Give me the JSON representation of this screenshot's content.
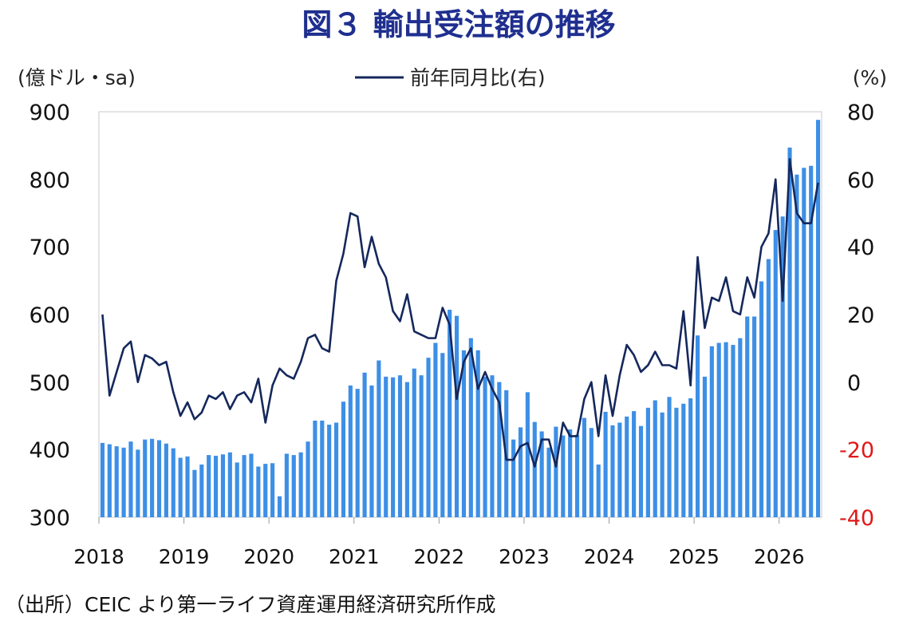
{
  "chart_data": {
    "type": "bar+line",
    "title": "図３ 輸出受注額の推移",
    "source": "（出所）CEIC より第一ライフ資産運用経済研究所作成",
    "left_axis": {
      "label": "(億ドル・sa)",
      "ylim": [
        300,
        900
      ],
      "ticks": [
        "900",
        "800",
        "700",
        "600",
        "500",
        "400",
        "300"
      ]
    },
    "right_axis": {
      "label": "(%)",
      "ylim": [
        -40,
        80
      ],
      "ticks": [
        "80",
        "60",
        "40",
        "20",
        "0",
        "-20",
        "-40"
      ]
    },
    "x_tick_labels": [
      "2018",
      "2019",
      "2020",
      "2021",
      "2022",
      "2023",
      "2024",
      "2025",
      "2026"
    ],
    "colors": {
      "bars": "#3d8fe6",
      "line": "#15285c",
      "negative_ticks": "#e01818",
      "title": "#1f2f8f"
    },
    "series": [
      {
        "name": "",
        "axis": "left",
        "kind": "bar",
        "values": [
          410,
          408,
          405,
          403,
          412,
          400,
          415,
          416,
          414,
          409,
          402,
          388,
          390,
          370,
          378,
          392,
          391,
          393,
          396,
          381,
          392,
          394,
          375,
          379,
          380,
          331,
          394,
          392,
          396,
          412,
          443,
          443,
          437,
          440,
          471,
          495,
          490,
          514,
          495,
          532,
          508,
          507,
          510,
          500,
          520,
          510,
          536,
          558,
          543,
          607,
          598,
          547,
          565,
          547,
          508,
          510,
          500,
          488,
          415,
          433,
          485,
          441,
          427,
          403,
          434,
          421,
          430,
          422,
          447,
          432,
          378,
          456,
          436,
          440,
          449,
          457,
          435,
          462,
          473,
          455,
          478,
          462,
          468,
          476,
          569,
          508,
          553,
          558,
          559,
          555,
          565,
          597,
          597,
          649,
          682,
          725,
          745,
          847,
          807,
          817,
          820,
          888
        ]
      },
      {
        "name": "前年同月比(右)",
        "axis": "right",
        "kind": "line",
        "values": [
          20,
          -4,
          3,
          10,
          12,
          0,
          8,
          7,
          5,
          6,
          -3,
          -10,
          -6,
          -11,
          -9,
          -4,
          -5,
          -3,
          -8,
          -4,
          -3,
          -6,
          1,
          -12,
          -1,
          4,
          2,
          1,
          6,
          13,
          14,
          10,
          9,
          30,
          38,
          50,
          49,
          34,
          43,
          35,
          31,
          21,
          18,
          26,
          15,
          14,
          13,
          13,
          22,
          17,
          -5,
          6,
          10,
          -2,
          3,
          -2,
          -6,
          -23,
          -23,
          -19,
          -18,
          -25,
          -17,
          -17,
          -25,
          -12,
          -16,
          -16,
          -5,
          0,
          -16,
          2,
          -10,
          2,
          11,
          8,
          3,
          5,
          9,
          5,
          5,
          4,
          21,
          -1,
          37,
          16,
          25,
          24,
          31,
          21,
          20,
          31,
          25,
          40,
          44,
          60,
          24,
          66,
          50,
          47,
          47,
          59
        ]
      }
    ]
  }
}
